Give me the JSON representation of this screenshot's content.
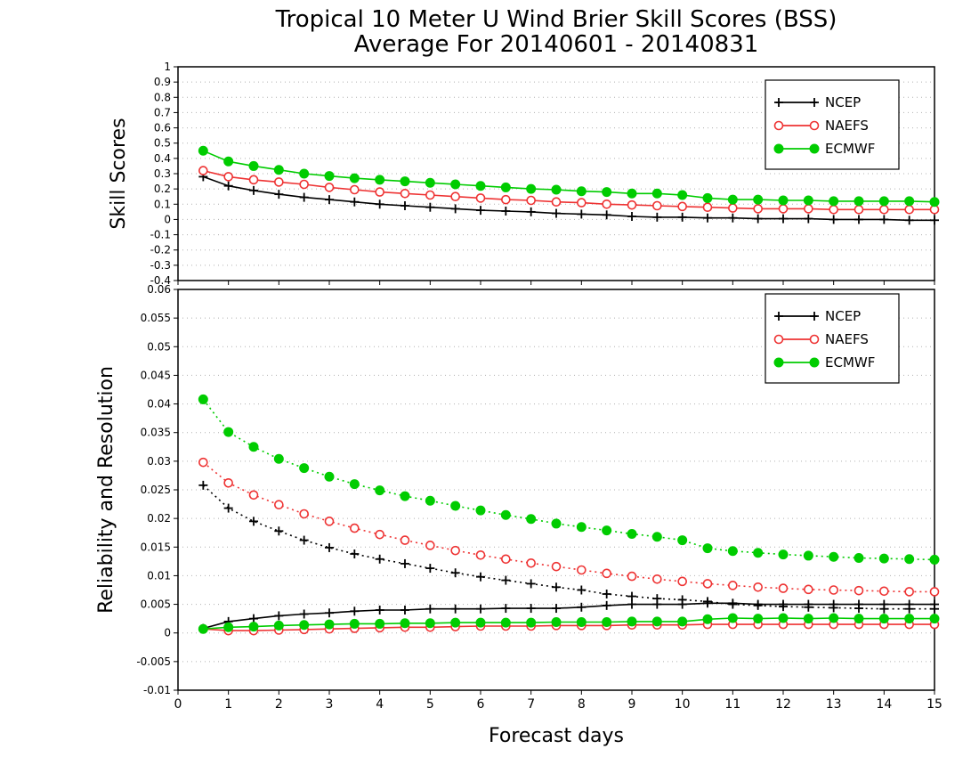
{
  "title_line1": "Tropical 10 Meter U Wind Brier Skill Scores (BSS)",
  "title_line2": "Average For 20140601 - 20140831",
  "xlabel": "Forecast days",
  "colors": {
    "NCEP": "#000000",
    "NAEFS": "#ee3333",
    "ECMWF": "#00cc00"
  },
  "chart_data": [
    {
      "type": "line",
      "ylabel": "Skill Scores",
      "xlim": [
        0,
        15
      ],
      "ylim": [
        -0.4,
        1
      ],
      "x_ticks": [
        "0",
        "1",
        "2",
        "3",
        "4",
        "5",
        "6",
        "7",
        "8",
        "9",
        "10",
        "11",
        "12",
        "13",
        "14",
        "15"
      ],
      "y_ticks": [
        "-0.4",
        "-0.3",
        "-0.2",
        "-0.1",
        "0",
        "0.1",
        "0.2",
        "0.3",
        "0.4",
        "0.5",
        "0.6",
        "0.7",
        "0.8",
        "0.9",
        "1"
      ],
      "grid": true,
      "legend_position": "top-right",
      "x": [
        0.5,
        1,
        1.5,
        2,
        2.5,
        3,
        3.5,
        4,
        4.5,
        5,
        5.5,
        6,
        6.5,
        7,
        7.5,
        8,
        8.5,
        9,
        9.5,
        10,
        10.5,
        11,
        11.5,
        12,
        12.5,
        13,
        13.5,
        14,
        14.5,
        15
      ],
      "series": [
        {
          "name": "NCEP",
          "marker": "plus",
          "values": [
            0.28,
            0.22,
            0.19,
            0.165,
            0.145,
            0.13,
            0.115,
            0.1,
            0.09,
            0.08,
            0.07,
            0.06,
            0.055,
            0.05,
            0.04,
            0.035,
            0.03,
            0.02,
            0.015,
            0.015,
            0.01,
            0.01,
            0.005,
            0.005,
            0.005,
            0.0,
            0.0,
            0.0,
            -0.005,
            -0.005
          ]
        },
        {
          "name": "NAEFS",
          "marker": "open-circle",
          "values": [
            0.32,
            0.28,
            0.26,
            0.245,
            0.23,
            0.21,
            0.195,
            0.18,
            0.17,
            0.16,
            0.15,
            0.14,
            0.13,
            0.125,
            0.115,
            0.11,
            0.1,
            0.095,
            0.09,
            0.085,
            0.08,
            0.075,
            0.07,
            0.07,
            0.07,
            0.065,
            0.065,
            0.065,
            0.065,
            0.065
          ]
        },
        {
          "name": "ECMWF",
          "marker": "filled-circle",
          "values": [
            0.45,
            0.38,
            0.35,
            0.325,
            0.3,
            0.285,
            0.27,
            0.26,
            0.25,
            0.24,
            0.23,
            0.22,
            0.21,
            0.2,
            0.195,
            0.185,
            0.18,
            0.17,
            0.17,
            0.16,
            0.14,
            0.13,
            0.13,
            0.125,
            0.125,
            0.12,
            0.12,
            0.12,
            0.12,
            0.115
          ]
        }
      ]
    },
    {
      "type": "line",
      "ylabel": "Reliability and Resolution",
      "xlim": [
        0,
        15
      ],
      "ylim": [
        -0.01,
        0.06
      ],
      "x_ticks": [
        "0",
        "1",
        "2",
        "3",
        "4",
        "5",
        "6",
        "7",
        "8",
        "9",
        "10",
        "11",
        "12",
        "13",
        "14",
        "15"
      ],
      "y_ticks": [
        "-0.01",
        "-0.005",
        "0",
        "0.005",
        "0.01",
        "0.015",
        "0.02",
        "0.025",
        "0.03",
        "0.035",
        "0.04",
        "0.045",
        "0.05",
        "0.055",
        "0.06"
      ],
      "grid": true,
      "legend_position": "top-right",
      "x": [
        0.5,
        1,
        1.5,
        2,
        2.5,
        3,
        3.5,
        4,
        4.5,
        5,
        5.5,
        6,
        6.5,
        7,
        7.5,
        8,
        8.5,
        9,
        9.5,
        10,
        10.5,
        11,
        11.5,
        12,
        12.5,
        13,
        13.5,
        14,
        14.5,
        15
      ],
      "series": [
        {
          "name": "NCEP",
          "kind": "reliability",
          "line_style": "solid",
          "marker": "plus",
          "values": [
            0.0008,
            0.002,
            0.0025,
            0.003,
            0.0033,
            0.0035,
            0.0038,
            0.004,
            0.004,
            0.0042,
            0.0042,
            0.0042,
            0.0043,
            0.0043,
            0.0043,
            0.0045,
            0.0048,
            0.005,
            0.005,
            0.005,
            0.0052,
            0.0052,
            0.005,
            0.005,
            0.005,
            0.005,
            0.005,
            0.005,
            0.005,
            0.005
          ]
        },
        {
          "name": "NCEP",
          "kind": "resolution",
          "line_style": "dotted",
          "marker": "plus",
          "values": [
            0.0258,
            0.0218,
            0.0195,
            0.0178,
            0.0162,
            0.0149,
            0.0138,
            0.0129,
            0.0121,
            0.0113,
            0.0105,
            0.0098,
            0.0092,
            0.0086,
            0.008,
            0.0075,
            0.0068,
            0.0064,
            0.006,
            0.0058,
            0.0055,
            0.005,
            0.0048,
            0.0046,
            0.0045,
            0.0044,
            0.0043,
            0.0042,
            0.0042,
            0.0042
          ]
        },
        {
          "name": "NAEFS",
          "kind": "reliability",
          "line_style": "solid",
          "marker": "open-circle",
          "values": [
            0.0007,
            0.0004,
            0.0004,
            0.0005,
            0.0006,
            0.0007,
            0.0008,
            0.0009,
            0.001,
            0.001,
            0.0011,
            0.0012,
            0.0012,
            0.0012,
            0.0013,
            0.0013,
            0.0013,
            0.0014,
            0.0014,
            0.0014,
            0.0015,
            0.0015,
            0.0015,
            0.0015,
            0.0015,
            0.0015,
            0.0015,
            0.0015,
            0.0015,
            0.0015
          ]
        },
        {
          "name": "NAEFS",
          "kind": "resolution",
          "line_style": "dotted",
          "marker": "open-circle",
          "values": [
            0.0298,
            0.0262,
            0.0241,
            0.0224,
            0.0208,
            0.0195,
            0.0183,
            0.0172,
            0.0162,
            0.0153,
            0.0144,
            0.0136,
            0.0129,
            0.0122,
            0.0116,
            0.011,
            0.0104,
            0.0099,
            0.0094,
            0.009,
            0.0086,
            0.0083,
            0.008,
            0.0078,
            0.0076,
            0.0075,
            0.0074,
            0.0073,
            0.0072,
            0.0072
          ]
        },
        {
          "name": "ECMWF",
          "kind": "reliability",
          "line_style": "solid",
          "marker": "filled-circle",
          "values": [
            0.0007,
            0.001,
            0.0011,
            0.0013,
            0.0014,
            0.0015,
            0.0016,
            0.0016,
            0.0017,
            0.0017,
            0.0018,
            0.0018,
            0.0018,
            0.0018,
            0.0019,
            0.0019,
            0.0019,
            0.002,
            0.002,
            0.002,
            0.0024,
            0.0026,
            0.0025,
            0.0026,
            0.0025,
            0.0026,
            0.0025,
            0.0025,
            0.0025,
            0.0025
          ]
        },
        {
          "name": "ECMWF",
          "kind": "resolution",
          "line_style": "dotted",
          "marker": "filled-circle",
          "values": [
            0.0408,
            0.0351,
            0.0325,
            0.0304,
            0.0288,
            0.0273,
            0.026,
            0.0249,
            0.0239,
            0.0231,
            0.0222,
            0.0214,
            0.0206,
            0.0199,
            0.0191,
            0.0185,
            0.0179,
            0.0173,
            0.0168,
            0.0162,
            0.0148,
            0.0143,
            0.014,
            0.0137,
            0.0135,
            0.0133,
            0.0131,
            0.013,
            0.0129,
            0.0128
          ]
        }
      ]
    }
  ]
}
